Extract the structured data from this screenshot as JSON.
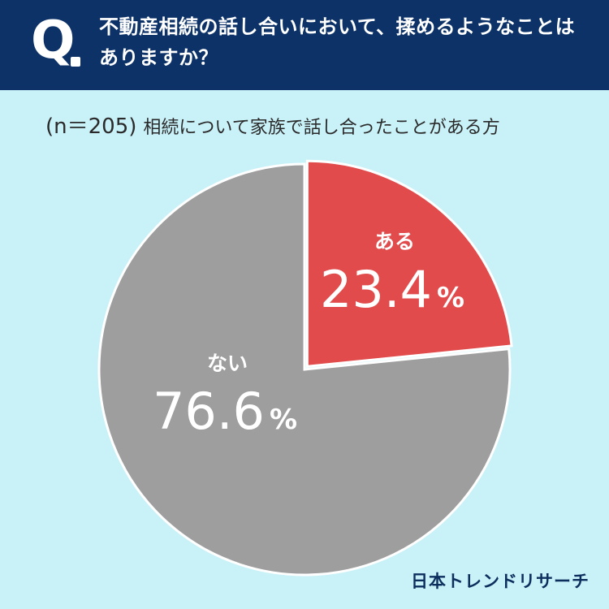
{
  "header": {
    "q_label": "Q",
    "question": "不動産相続の話し合いにおいて、揉めるようなことはありますか？"
  },
  "subtitle": {
    "n_text": "(n＝205)",
    "condition": "相続について家族で話し合ったことがある方"
  },
  "chart_data": {
    "type": "pie",
    "slices": [
      {
        "label": "ある",
        "value": 23.4,
        "display": "23.4",
        "unit": "%",
        "color": "#e14b4c"
      },
      {
        "label": "ない",
        "value": 76.6,
        "display": "76.6",
        "unit": "%",
        "color": "#9e9e9e"
      }
    ],
    "start": "12 o'clock",
    "direction": "clockwise",
    "first_slice_exploded": true
  },
  "brand": "日本トレンドリサーチ"
}
